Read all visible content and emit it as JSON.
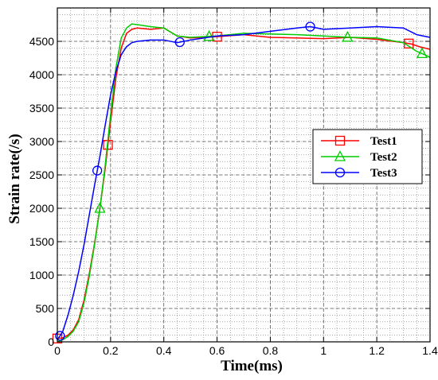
{
  "chart_data": {
    "type": "line",
    "title": "",
    "xlabel": "Time(ms)",
    "ylabel": "Strain rate(/s)",
    "xlim": [
      0,
      1.4
    ],
    "ylim": [
      0,
      5000
    ],
    "x_ticks": [
      0,
      0.2,
      0.4,
      0.6,
      0.8,
      1,
      1.2,
      1.4
    ],
    "x_tick_labels": [
      "0",
      "0.2",
      "0.4",
      "0.6",
      "0.8",
      "1",
      "1.2",
      "1.4"
    ],
    "y_ticks": [
      0,
      500,
      1000,
      1500,
      2000,
      2500,
      3000,
      3500,
      4000,
      4500
    ],
    "y_tick_labels": [
      "0",
      "500",
      "1000",
      "1500",
      "2000",
      "2500",
      "3000",
      "3500",
      "4000",
      "4500"
    ],
    "grid": true,
    "legend_position": "right",
    "series": [
      {
        "name": "Test1",
        "color": "#ff0000",
        "marker": "square",
        "x": [
          0,
          0.02,
          0.04,
          0.06,
          0.08,
          0.1,
          0.12,
          0.14,
          0.16,
          0.18,
          0.2,
          0.22,
          0.24,
          0.26,
          0.28,
          0.3,
          0.35,
          0.4,
          0.45,
          0.5,
          0.55,
          0.6,
          0.7,
          0.8,
          0.9,
          1.0,
          1.1,
          1.2,
          1.3,
          1.33,
          1.36,
          1.4
        ],
        "y": [
          50,
          60,
          100,
          180,
          330,
          620,
          1020,
          1480,
          2000,
          2600,
          3300,
          3950,
          4400,
          4620,
          4680,
          4700,
          4680,
          4700,
          4580,
          4550,
          4560,
          4570,
          4600,
          4560,
          4550,
          4540,
          4560,
          4530,
          4480,
          4460,
          4420,
          4380
        ],
        "marker_x": [
          0,
          0.19,
          0.6,
          1.32
        ]
      },
      {
        "name": "Test2",
        "color": "#00cc00",
        "marker": "triangle",
        "x": [
          0,
          0.02,
          0.04,
          0.06,
          0.08,
          0.1,
          0.12,
          0.14,
          0.16,
          0.18,
          0.2,
          0.22,
          0.24,
          0.26,
          0.28,
          0.3,
          0.35,
          0.4,
          0.45,
          0.5,
          0.55,
          0.6,
          0.7,
          0.8,
          0.9,
          1.0,
          1.1,
          1.2,
          1.3,
          1.35,
          1.38,
          1.4
        ],
        "y": [
          0,
          30,
          80,
          160,
          300,
          580,
          980,
          1460,
          2000,
          2650,
          3400,
          4100,
          4550,
          4700,
          4760,
          4750,
          4720,
          4700,
          4580,
          4560,
          4570,
          4580,
          4620,
          4610,
          4600,
          4580,
          4560,
          4550,
          4480,
          4350,
          4300,
          4260
        ],
        "marker_x": [
          0.16,
          0.57,
          1.09,
          1.37
        ]
      },
      {
        "name": "Test3",
        "color": "#0000ff",
        "marker": "circle",
        "x": [
          0,
          0.02,
          0.04,
          0.06,
          0.08,
          0.1,
          0.12,
          0.14,
          0.16,
          0.18,
          0.2,
          0.22,
          0.24,
          0.26,
          0.28,
          0.3,
          0.35,
          0.4,
          0.45,
          0.5,
          0.6,
          0.7,
          0.8,
          0.9,
          0.95,
          1.0,
          1.1,
          1.2,
          1.3,
          1.35,
          1.4
        ],
        "y": [
          30,
          150,
          400,
          700,
          1050,
          1450,
          1900,
          2350,
          2780,
          3250,
          3700,
          4050,
          4300,
          4420,
          4480,
          4500,
          4520,
          4520,
          4480,
          4520,
          4580,
          4600,
          4650,
          4700,
          4720,
          4680,
          4700,
          4720,
          4700,
          4600,
          4560
        ],
        "marker_x": [
          0.01,
          0.15,
          0.46,
          0.95
        ]
      }
    ]
  }
}
